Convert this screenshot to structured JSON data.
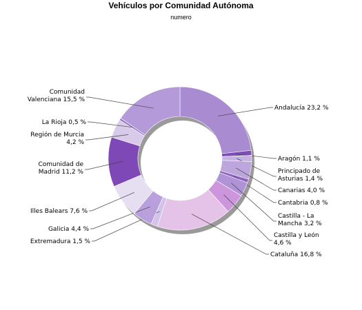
{
  "chart_data": {
    "type": "pie",
    "donut": true,
    "title": "Vehículos por Comunidad Autónoma",
    "subtitle": "numero",
    "value_unit": "%",
    "slices": [
      {
        "lines": [
          "Andalucía 23,2 %"
        ],
        "value": 23.2,
        "color": "#a98bd2"
      },
      {
        "lines": [
          "Aragón 1,1 %"
        ],
        "value": 1.1,
        "color": "#7f4db8"
      },
      {
        "lines": [
          "Principado de",
          "Asturias 1,4 %"
        ],
        "value": 1.4,
        "color": "#c4b2e2"
      },
      {
        "lines": [
          "Canarias 4,0 %"
        ],
        "value": 4.0,
        "color": "#bca6dc"
      },
      {
        "lines": [
          "Cantabria 0,8 %"
        ],
        "value": 0.8,
        "color": "#8f63c1"
      },
      {
        "lines": [
          "Castilla - La",
          "Mancha 3,2 %"
        ],
        "value": 3.2,
        "color": "#b093d7"
      },
      {
        "lines": [
          "Castilla y León",
          "4,6 %"
        ],
        "value": 4.6,
        "color": "#cd95dc"
      },
      {
        "lines": [
          "Cataluña 16,8 %"
        ],
        "value": 16.8,
        "color": "#e5c2e8"
      },
      {
        "lines": [
          "Extremadura 1,5 %"
        ],
        "value": 1.5,
        "color": "#d2c3eb"
      },
      {
        "lines": [
          "Galicia 4,4 %"
        ],
        "value": 4.4,
        "color": "#b9a0dc"
      },
      {
        "lines": [
          "Illes Balears 7,6 %"
        ],
        "value": 7.6,
        "color": "#e6def1"
      },
      {
        "lines": [
          "Comunidad de",
          "Madrid 11,2 %"
        ],
        "value": 11.2,
        "color": "#7f48b7"
      },
      {
        "lines": [
          "Región de Murcia",
          "4,2 %"
        ],
        "value": 4.2,
        "color": "#d8cbea"
      },
      {
        "lines": [
          "La Rioja 0,5 %"
        ],
        "value": 0.5,
        "color": "#9a77c8"
      },
      {
        "lines": [
          "Comunidad",
          "Valenciana 15,5 %"
        ],
        "value": 15.5,
        "color": "#b49ad8"
      }
    ]
  }
}
